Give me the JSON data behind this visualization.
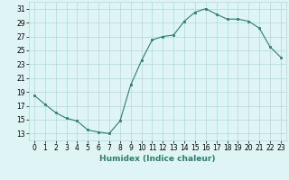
{
  "x": [
    0,
    1,
    2,
    3,
    4,
    5,
    6,
    7,
    8,
    9,
    10,
    11,
    12,
    13,
    14,
    15,
    16,
    17,
    18,
    19,
    20,
    21,
    22,
    23
  ],
  "y": [
    18.5,
    17.2,
    16.0,
    15.2,
    14.8,
    13.5,
    13.2,
    13.0,
    14.8,
    20.0,
    23.5,
    26.5,
    27.0,
    27.2,
    29.2,
    30.5,
    31.0,
    30.2,
    29.5,
    29.5,
    29.2,
    28.2,
    25.5,
    24.0
  ],
  "line_color": "#2e7d6e",
  "marker_color": "#2e7d6e",
  "bg_color": "#dff4f4",
  "grid_color": "#b0d8d8",
  "xlabel": "Humidex (Indice chaleur)",
  "ylabel": "",
  "xlim": [
    -0.5,
    23.5
  ],
  "ylim": [
    12,
    32
  ],
  "yticks": [
    13,
    15,
    17,
    19,
    21,
    23,
    25,
    27,
    29,
    31
  ],
  "xticks": [
    0,
    1,
    2,
    3,
    4,
    5,
    6,
    7,
    8,
    9,
    10,
    11,
    12,
    13,
    14,
    15,
    16,
    17,
    18,
    19,
    20,
    21,
    22,
    23
  ],
  "label_fontsize": 6.5,
  "tick_fontsize": 5.5
}
